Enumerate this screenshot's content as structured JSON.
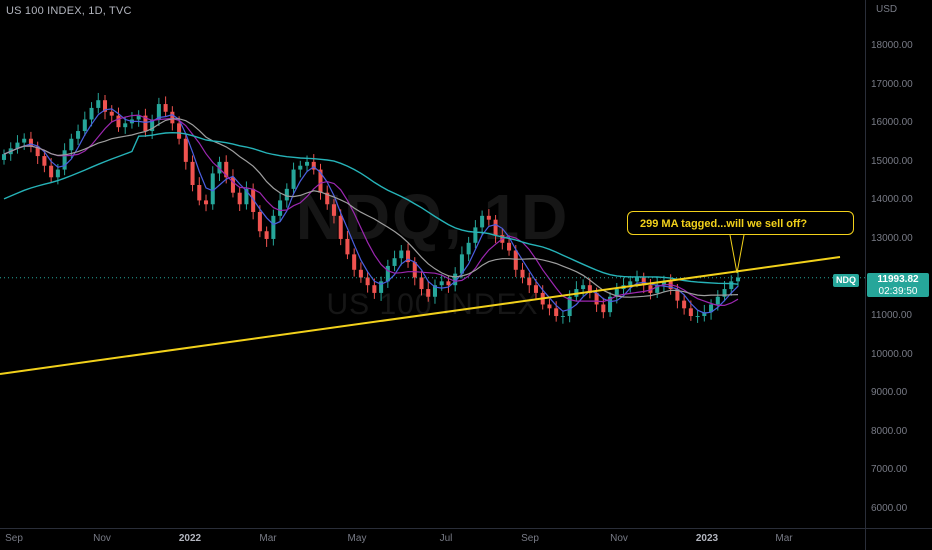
{
  "header": {
    "title": "US 100 INDEX, 1D, TVC"
  },
  "watermark": {
    "symbol": "NDQ, 1D",
    "name": "US 100 INDEX"
  },
  "price_axis": {
    "currency": "USD",
    "labels": [
      "18000.00",
      "17000.00",
      "16000.00",
      "15000.00",
      "14000.00",
      "13000.00",
      "11000.00",
      "10000.00",
      "9000.00",
      "8000.00",
      "7000.00",
      "6000.00"
    ]
  },
  "time_axis": {
    "labels": [
      "Sep",
      "Nov",
      "2022",
      "Mar",
      "May",
      "Jul",
      "Sep",
      "Nov",
      "2023",
      "Mar"
    ]
  },
  "last_price": {
    "ticker": "NDQ",
    "price": "11993.82",
    "countdown": "02:39:50"
  },
  "annotation": {
    "text": "299 MA tagged...will we sell off?"
  },
  "colors": {
    "up": "#26a69a",
    "down": "#ef5350",
    "trendline": "#f2d11b",
    "ma_fast": "#4b5fe0",
    "ma_mid": "#9c27b0",
    "ma_slow": "#9e9e9e",
    "ma_299": "#26b3b8"
  },
  "chart_data": {
    "type": "candlestick",
    "title": "US 100 INDEX, 1D, TVC",
    "ylabel": "USD",
    "ylim": [
      5500,
      19200
    ],
    "series": [
      {
        "name": "NDQ",
        "closes": [
          15200,
          15350,
          15500,
          15600,
          15400,
          15150,
          14900,
          14600,
          14800,
          15300,
          15600,
          15800,
          16100,
          16400,
          16600,
          16300,
          16200,
          15900,
          16000,
          16100,
          16200,
          15800,
          16100,
          16500,
          16300,
          16000,
          15600,
          15000,
          14400,
          14000,
          13900,
          14700,
          15000,
          14600,
          14200,
          13900,
          14300,
          13700,
          13200,
          13000,
          13600,
          14000,
          14300,
          14800,
          14900,
          15000,
          14800,
          14200,
          13900,
          13600,
          13000,
          12600,
          12200,
          12000,
          11800,
          11600,
          11900,
          12300,
          12500,
          12700,
          12400,
          12000,
          11700,
          11500,
          11800,
          11900,
          11800,
          12100,
          12600,
          12900,
          13300,
          13600,
          13500,
          13100,
          12900,
          12700,
          12200,
          12000,
          11800,
          11600,
          11300,
          11200,
          11000,
          11000,
          11500,
          11700,
          11800,
          11600,
          11300,
          11100,
          11500,
          11700,
          11800,
          11900,
          12000,
          11800,
          11600,
          11800,
          11900,
          11700,
          11400,
          11200,
          11000,
          11000,
          11100,
          11300,
          11500,
          11700,
          11900,
          12000
        ]
      }
    ]
  }
}
